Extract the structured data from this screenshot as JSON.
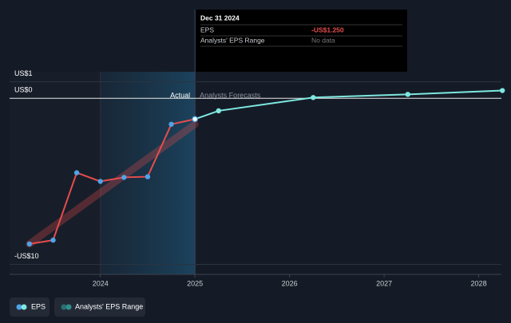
{
  "chart_data": {
    "type": "line",
    "x": [
      2023.25,
      2023.5,
      2023.75,
      2024.0,
      2024.25,
      2024.5,
      2024.75,
      2025.0,
      2025.25,
      2026.25,
      2027.25,
      2028.25
    ],
    "series": [
      {
        "name": "EPS",
        "color": "#e64c4c",
        "forecast_color": "#7ee8e0",
        "values": [
          -8.77,
          -8.54,
          -4.48,
          -5.0,
          -4.76,
          -4.72,
          -1.56,
          -1.25,
          -0.75,
          0.05,
          0.24,
          0.47
        ]
      }
    ],
    "range_name": "Analysts' EPS Range",
    "xlim": [
      2023.04,
      2028.24
    ],
    "xticks": [
      2024,
      2025,
      2026,
      2027,
      2028
    ],
    "ylim": [
      -10.6,
      1.6
    ],
    "yticks": [
      {
        "value": 1,
        "label": "US$1"
      },
      {
        "value": 0,
        "label": "US$0"
      },
      {
        "value": -10,
        "label": "-US$10"
      }
    ],
    "forecast_start": 2025,
    "shade_start": 2024,
    "actual_label": "Actual",
    "forecast_label": "Analysts Forecasts",
    "tooltip": {
      "date": "Dec 31 2024",
      "rows": [
        [
          "EPS",
          "-US$1.250"
        ],
        [
          "Analysts' EPS Range",
          "No data"
        ]
      ]
    }
  }
}
